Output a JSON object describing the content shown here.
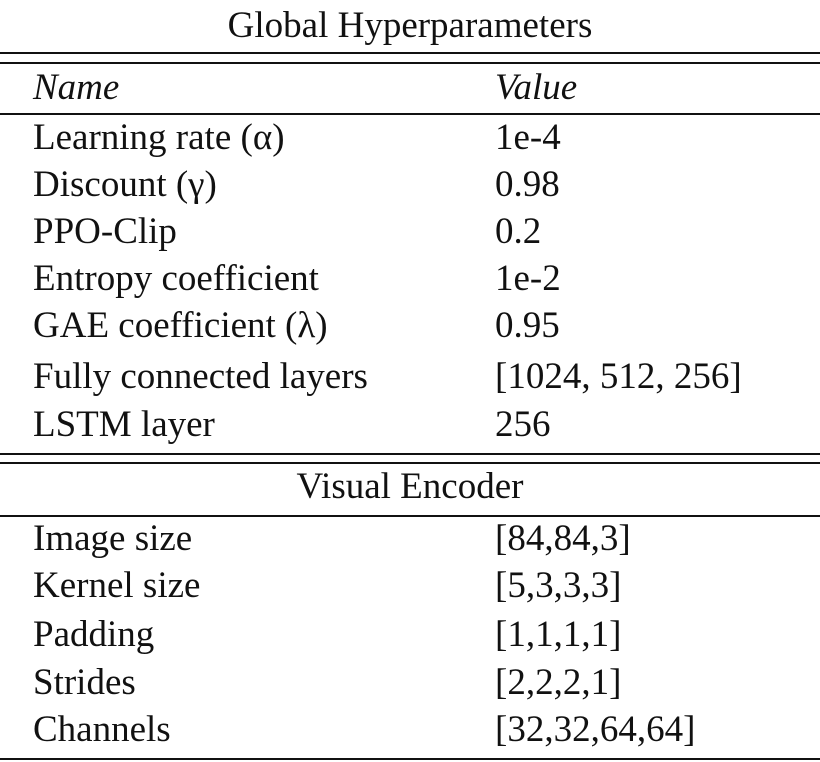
{
  "global": {
    "title": "Global Hyperparameters",
    "header": {
      "name": "Name",
      "value": "Value"
    },
    "rows": [
      {
        "name": "Learning rate (α)",
        "value": "1e-4"
      },
      {
        "name": "Discount (γ)",
        "value": "0.98"
      },
      {
        "name": "PPO-Clip",
        "value": "0.2"
      },
      {
        "name": "Entropy coefficient",
        "value": "1e-2"
      },
      {
        "name": "GAE coefficient (λ)",
        "value": "0.95"
      },
      {
        "name": "Fully connected layers",
        "value": "[1024, 512, 256]"
      },
      {
        "name": "LSTM layer",
        "value": "256"
      }
    ]
  },
  "visual": {
    "title": "Visual Encoder",
    "rows": [
      {
        "name": "Image size",
        "value": "[84,84,3]"
      },
      {
        "name": "Kernel size",
        "value": "[5,3,3,3]"
      },
      {
        "name": "Padding",
        "value": "[1,1,1,1]"
      },
      {
        "name": "Strides",
        "value": "[2,2,2,1]"
      },
      {
        "name": "Channels",
        "value": "[32,32,64,64]"
      }
    ]
  }
}
